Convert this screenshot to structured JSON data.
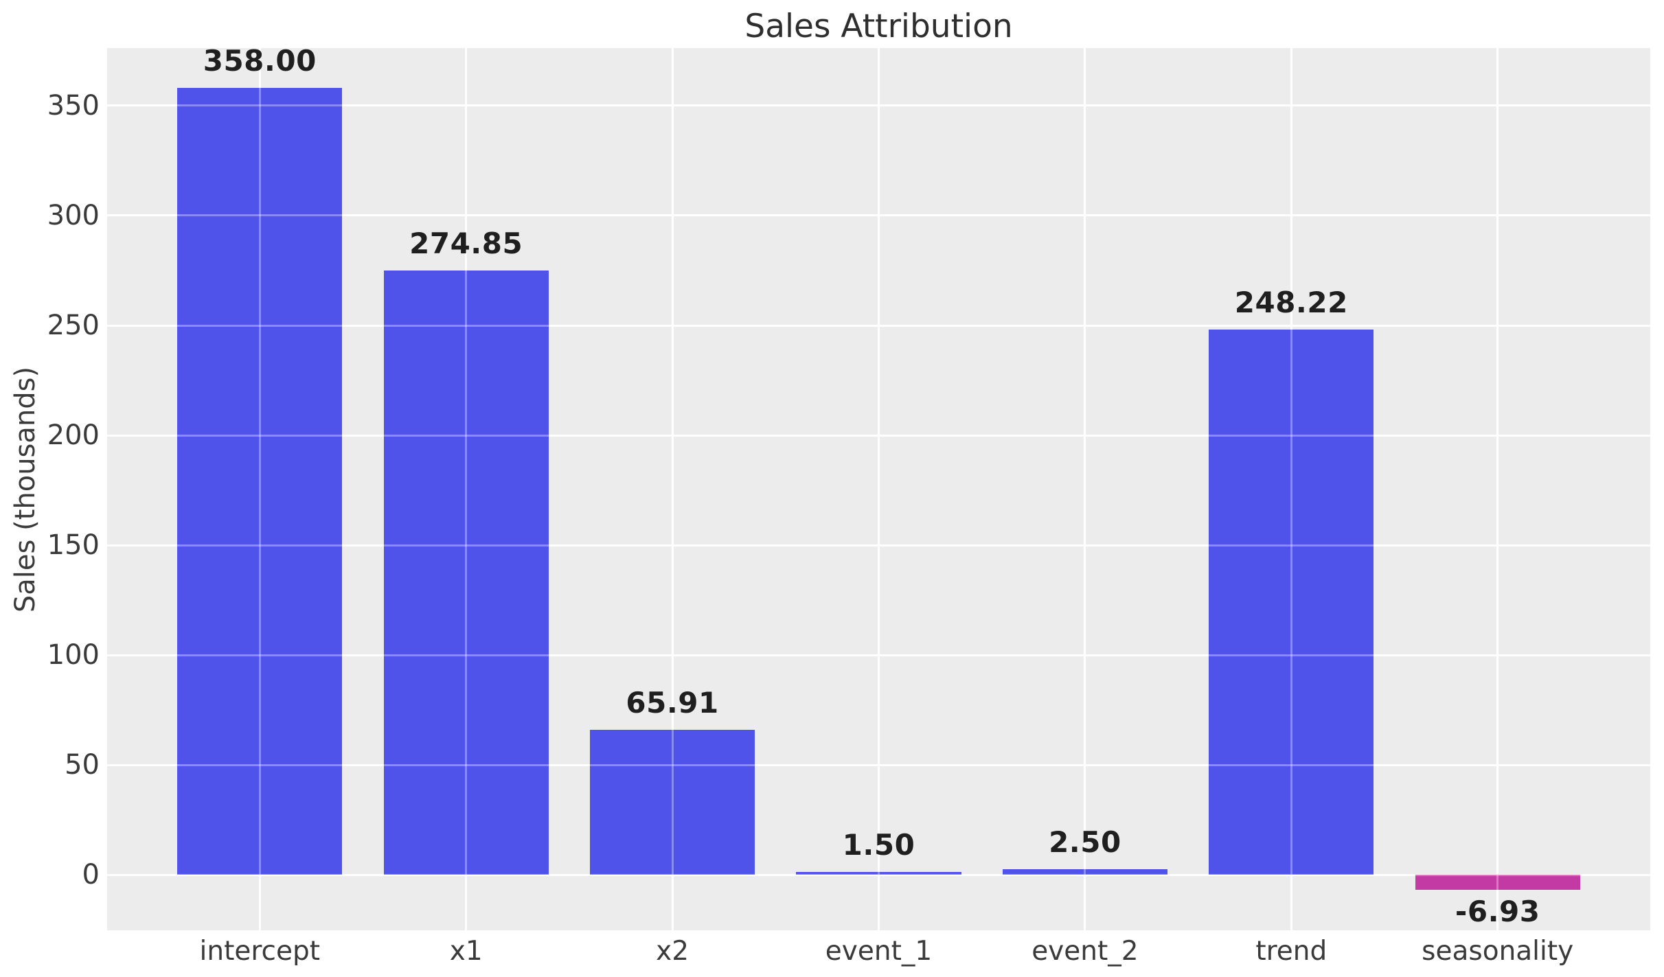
{
  "chart_data": {
    "type": "bar",
    "title": "Sales Attribution",
    "xlabel": "",
    "ylabel": "Sales (thousands)",
    "categories": [
      "intercept",
      "x1",
      "x2",
      "event_1",
      "event_2",
      "trend",
      "seasonality"
    ],
    "values": [
      358.0,
      274.85,
      65.91,
      1.5,
      2.5,
      248.22,
      -6.93
    ],
    "value_labels": [
      "358.00",
      "274.85",
      "65.91",
      "1.50",
      "2.50",
      "248.22",
      "-6.93"
    ],
    "bar_colors": [
      "#5053E9",
      "#5053E9",
      "#5053E9",
      "#5053E9",
      "#5053E9",
      "#5053E9",
      "#C43AA4"
    ],
    "positive_color": "#5053E9",
    "negative_color": "#C43AA4",
    "yticks": [
      0,
      50,
      100,
      150,
      200,
      250,
      300,
      350
    ],
    "ytick_labels": [
      "0",
      "50",
      "100",
      "150",
      "200",
      "250",
      "300",
      "350"
    ],
    "ylim": [
      -25.2,
      376.2
    ],
    "xlim": [
      -0.74,
      6.74
    ],
    "bar_width_units": 0.8,
    "grid": true,
    "legend": false,
    "style": {
      "plot_background": "#ECECEC",
      "figure_background": "#FFFFFF",
      "grid_color": "#FFFFFF",
      "tick_text_color": "#3A3A3A",
      "title_color": "#2E2E2E",
      "value_label_color": "#1F1F1F"
    }
  }
}
